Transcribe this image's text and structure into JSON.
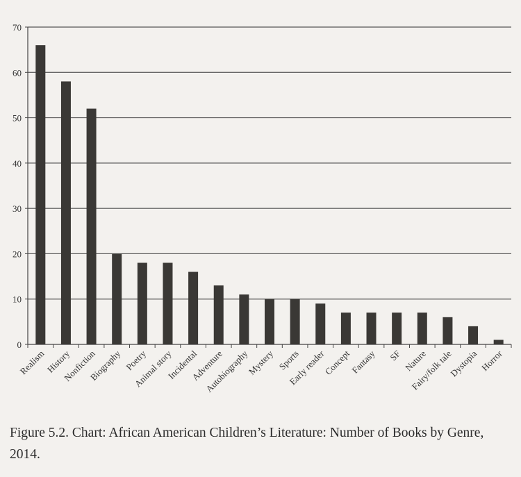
{
  "chart_data": {
    "type": "bar",
    "title": "",
    "xlabel": "",
    "ylabel": "",
    "categories": [
      "Realism",
      "History",
      "Nonfiction",
      "Biography",
      "Poetry",
      "Animal story",
      "Incidental",
      "Adventure",
      "Autobiography",
      "Mystery",
      "Sports",
      "Early reader",
      "Concept",
      "Fantasy",
      "SF",
      "Nature",
      "Fairy/folk tale",
      "Dystopia",
      "Horror"
    ],
    "values": [
      66,
      58,
      52,
      20,
      18,
      18,
      16,
      13,
      11,
      10,
      10,
      9,
      7,
      7,
      7,
      7,
      6,
      4,
      1
    ],
    "ylim": [
      0,
      70
    ],
    "yticks": [
      0,
      10,
      20,
      30,
      40,
      50,
      60,
      70
    ],
    "grid": true,
    "bar_color": "#3a3835"
  },
  "caption": "Figure 5.2.  Chart: African American Children’s Literature: Number of Books by Genre, 2014."
}
